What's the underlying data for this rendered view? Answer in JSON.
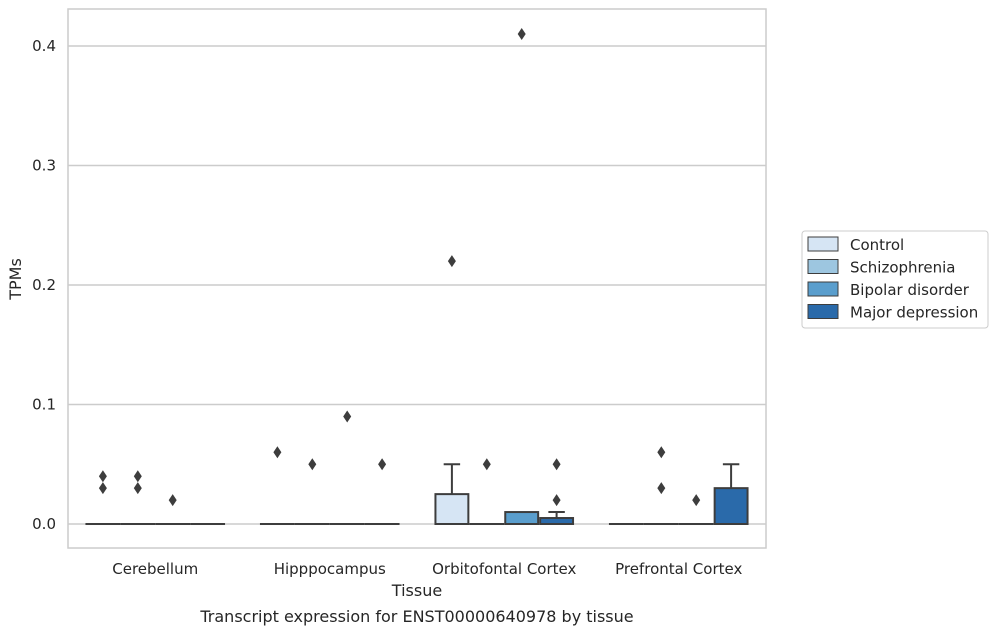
{
  "caption": "Transcript expression for ENST00000640978 by tissue",
  "chart_data": {
    "type": "box",
    "xlabel": "Tissue",
    "ylabel": "TPMs",
    "ylim": [
      -0.02,
      0.431
    ],
    "yticks": [
      "0.0",
      "0.1",
      "0.2",
      "0.3",
      "0.4"
    ],
    "grid": "horizontal",
    "legend_position": "right",
    "categories": [
      "Cerebellum",
      "Hipppocampus",
      "Orbitofontal Cortex",
      "Prefrontal Cortex"
    ],
    "series": [
      {
        "name": "Control",
        "color": "#d6e5f4",
        "boxes": [
          {
            "q1": 0,
            "median": 0,
            "q3": 0,
            "whislo": 0,
            "whishi": 0,
            "fliers": [
              0.03,
              0.04
            ]
          },
          {
            "q1": 0,
            "median": 0,
            "q3": 0,
            "whislo": 0,
            "whishi": 0,
            "fliers": [
              0.06
            ]
          },
          {
            "q1": 0,
            "median": 0,
            "q3": 0.025,
            "whislo": 0,
            "whishi": 0.05,
            "fliers": [
              0.22
            ]
          },
          {
            "q1": 0,
            "median": 0,
            "q3": 0,
            "whislo": 0,
            "whishi": 0,
            "fliers": []
          }
        ]
      },
      {
        "name": "Schizophrenia",
        "color": "#9dc6e0",
        "boxes": [
          {
            "q1": 0,
            "median": 0,
            "q3": 0,
            "whislo": 0,
            "whishi": 0,
            "fliers": [
              0.03,
              0.04
            ]
          },
          {
            "q1": 0,
            "median": 0,
            "q3": 0,
            "whislo": 0,
            "whishi": 0,
            "fliers": [
              0.05
            ]
          },
          {
            "q1": 0,
            "median": 0,
            "q3": 0,
            "whislo": 0,
            "whishi": 0,
            "fliers": [
              0.05
            ]
          },
          {
            "q1": 0,
            "median": 0,
            "q3": 0,
            "whislo": 0,
            "whishi": 0,
            "fliers": [
              0.03,
              0.06
            ]
          }
        ]
      },
      {
        "name": "Bipolar disorder",
        "color": "#5a9ecd",
        "boxes": [
          {
            "q1": 0,
            "median": 0,
            "q3": 0,
            "whislo": 0,
            "whishi": 0,
            "fliers": [
              0.02
            ]
          },
          {
            "q1": 0,
            "median": 0,
            "q3": 0,
            "whislo": 0,
            "whishi": 0,
            "fliers": [
              0.09
            ]
          },
          {
            "q1": 0,
            "median": 0,
            "q3": 0.01,
            "whislo": 0,
            "whishi": 0.01,
            "fliers": [
              0.41
            ]
          },
          {
            "q1": 0,
            "median": 0,
            "q3": 0,
            "whislo": 0,
            "whishi": 0,
            "fliers": [
              0.02
            ]
          }
        ]
      },
      {
        "name": "Major depression",
        "color": "#2a6aaa",
        "boxes": [
          {
            "q1": 0,
            "median": 0,
            "q3": 0,
            "whislo": 0,
            "whishi": 0,
            "fliers": []
          },
          {
            "q1": 0,
            "median": 0,
            "q3": 0,
            "whislo": 0,
            "whishi": 0,
            "fliers": [
              0.05
            ]
          },
          {
            "q1": 0,
            "median": 0,
            "q3": 0.005,
            "whislo": 0,
            "whishi": 0.01,
            "fliers": [
              0.02,
              0.05
            ]
          },
          {
            "q1": 0,
            "median": 0,
            "q3": 0.03,
            "whislo": 0,
            "whishi": 0.05,
            "fliers": []
          }
        ]
      }
    ]
  }
}
